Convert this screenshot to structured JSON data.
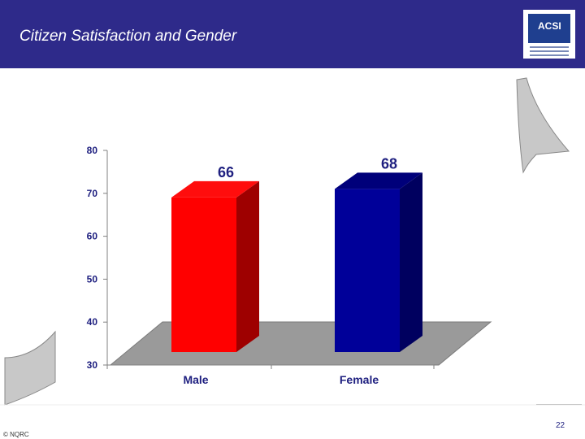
{
  "header": {
    "title": "Citizen Satisfaction and Gender",
    "logo_text": "ACSI"
  },
  "colors": {
    "header_bg": "#2e2a8a",
    "male_bar": "#ff0000",
    "female_bar": "#000099",
    "floor": "#999999",
    "label_text": "#1f2080"
  },
  "chart_data": {
    "type": "bar",
    "title": "",
    "xlabel": "",
    "ylabel": "",
    "categories": [
      "Male",
      "Female"
    ],
    "values": [
      66,
      68
    ],
    "data_labels": [
      "66",
      "68"
    ],
    "ylim": [
      30,
      80
    ],
    "yticks": [
      "30",
      "40",
      "50",
      "60",
      "70",
      "80"
    ],
    "bar_colors": [
      "#ff0000",
      "#000099"
    ],
    "style": "3d",
    "grid": false
  },
  "footer": {
    "copyright": "© NQRC",
    "page_number": "22"
  }
}
